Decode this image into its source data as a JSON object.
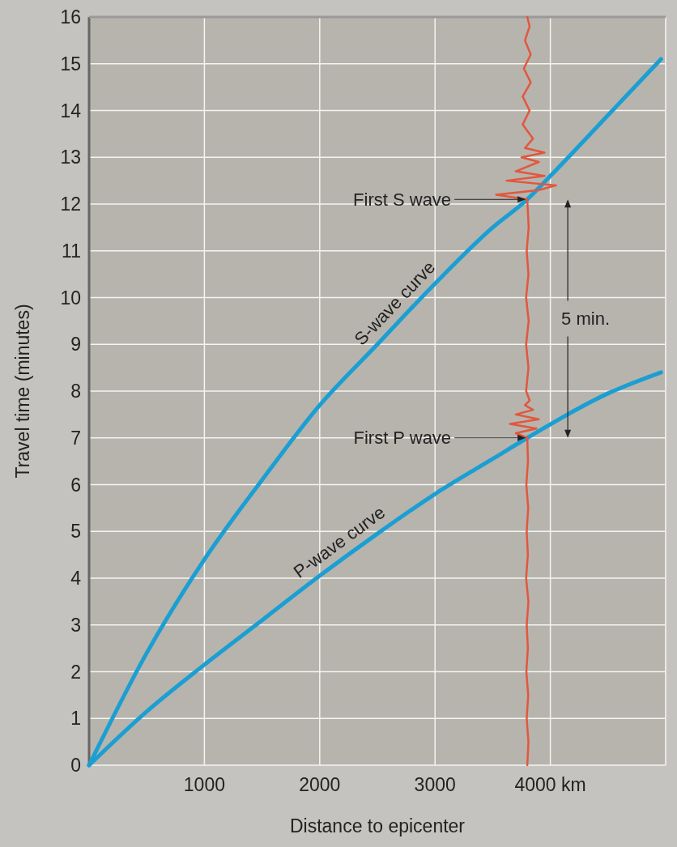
{
  "chart_data": {
    "type": "line",
    "xlabel": "Distance to epicenter",
    "ylabel": "Travel time (minutes)",
    "xlim": [
      0,
      5000
    ],
    "ylim": [
      0,
      16
    ],
    "xticks": [
      1000,
      2000,
      3000,
      {
        "value": 4000,
        "label": "4000 km"
      }
    ],
    "yticks": [
      0,
      1,
      2,
      3,
      4,
      5,
      6,
      7,
      8,
      9,
      10,
      11,
      12,
      13,
      14,
      15,
      16
    ],
    "grid": true,
    "series": [
      {
        "name": "S-wave curve",
        "color": "#1b9fd3",
        "x": [
          0,
          500,
          1000,
          1500,
          2000,
          2500,
          3000,
          3500,
          3800,
          4000,
          4500,
          4960
        ],
        "values": [
          0,
          2.4,
          4.4,
          6.1,
          7.7,
          9,
          10.3,
          11.5,
          12.1,
          12.6,
          13.9,
          15.1
        ]
      },
      {
        "name": "P-wave curve",
        "color": "#1b9fd3",
        "x": [
          0,
          500,
          1000,
          1500,
          2000,
          2500,
          3000,
          3500,
          3800,
          4500,
          4960
        ],
        "values": [
          0,
          1.15,
          2.15,
          3.1,
          4.05,
          4.95,
          5.8,
          6.55,
          7,
          7.95,
          8.4
        ]
      },
      {
        "color": "#e2573d",
        "x": [
          3800,
          3810,
          3795,
          3808,
          3792,
          3805,
          3795,
          3810,
          3790,
          3805,
          3795,
          3808,
          3792,
          3806,
          3800,
          3700,
          3880,
          3650,
          3900,
          3700,
          3850,
          3780,
          3820,
          3790,
          3810,
          3790,
          3812,
          3790,
          3810,
          3795,
          3812,
          3800,
          3530,
          3900,
          4050,
          3620,
          3950,
          3700,
          3900,
          3750,
          3950,
          3780,
          3850,
          3760,
          3820,
          3760,
          3830,
          3770,
          3830,
          3780,
          3820,
          3800
        ],
        "values": [
          0,
          0.5,
          1,
          1.5,
          2,
          2.5,
          3,
          3.5,
          4,
          4.5,
          5,
          5.5,
          6,
          6.5,
          7,
          7.1,
          7.2,
          7.3,
          7.4,
          7.5,
          7.6,
          7.7,
          7.8,
          8,
          8.5,
          9,
          9.5,
          10,
          10.5,
          11,
          11.5,
          12.1,
          12.2,
          12.3,
          12.4,
          12.5,
          12.6,
          12.7,
          12.9,
          13,
          13.1,
          13.2,
          13.4,
          13.7,
          14,
          14.3,
          14.6,
          14.9,
          15.2,
          15.5,
          15.8,
          16
        ]
      }
    ],
    "annotations": [
      {
        "text": "First S wave",
        "x": 3800,
        "y": 12.1
      },
      {
        "text": "First P wave",
        "x": 3800,
        "y": 7
      },
      "5 min."
    ]
  }
}
